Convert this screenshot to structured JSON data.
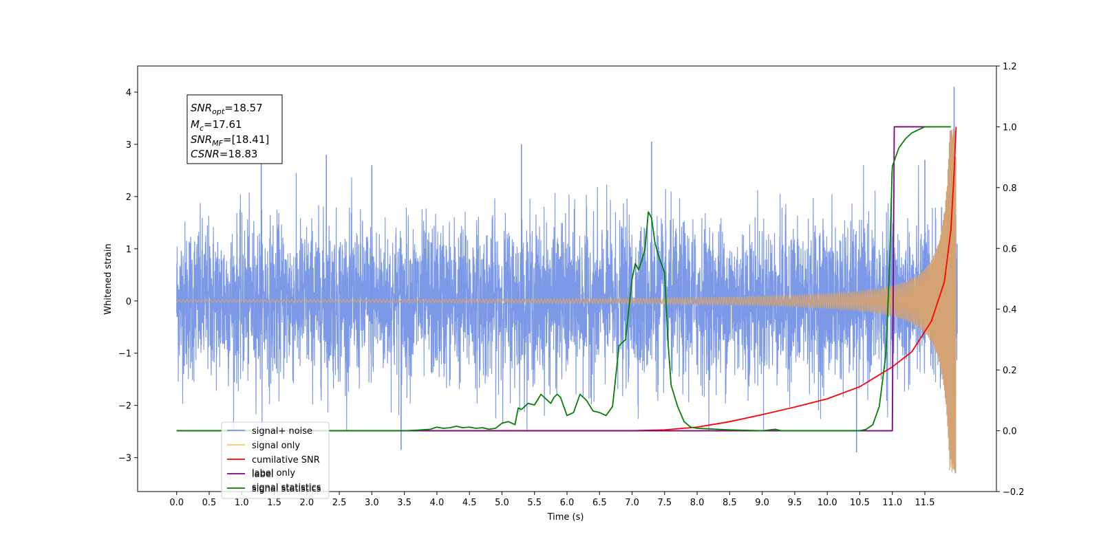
{
  "chart_data": {
    "type": "line",
    "xlabel": "Time (s)",
    "ylabel": "Whitened strain",
    "xlim": [
      -0.6,
      12.6
    ],
    "ylim": [
      -3.65,
      4.5
    ],
    "y2lim": [
      -0.2,
      1.2
    ],
    "x_ticks": [
      "0.0",
      "0.5",
      "1.0",
      "1.5",
      "2.0",
      "2.5",
      "3.0",
      "3.5",
      "4.0",
      "4.5",
      "5.0",
      "5.5",
      "6.0",
      "6.5",
      "7.0",
      "7.5",
      "8.0",
      "8.5",
      "9.0",
      "9.5",
      "10.0",
      "10.5",
      "11.0",
      "11.5"
    ],
    "y_ticks": [
      "−3",
      "−2",
      "−1",
      "0",
      "1",
      "2",
      "3",
      "4"
    ],
    "y2_ticks": [
      "−0.2",
      "0.0",
      "0.2",
      "0.4",
      "0.6",
      "0.8",
      "1.0",
      "1.2"
    ],
    "legend_position": "lower-left",
    "legend": [
      {
        "label": "signal+ noise",
        "color": "#7593e6"
      },
      {
        "label": "signal only",
        "color": "#ffc266"
      },
      {
        "label": "cumilative SNR",
        "color": "#ff0000"
      },
      {
        "label": "label",
        "color": "#800080"
      },
      {
        "label": "signal statistics",
        "color": "#008000"
      }
    ],
    "hidden_legend_text": [
      "label only",
      "signal statistics"
    ],
    "info_box": {
      "snr_opt_name": "SNR",
      "snr_opt_sub": "opt",
      "snr_opt_value": "=18.57",
      "mc_name": "M",
      "mc_sub": "c",
      "mc_value": "=17.61",
      "snr_mf_name": "SNR",
      "snr_mf_sub": "MF",
      "snr_mf_value": "=[18.41]",
      "csnr_name": "CSNR",
      "csnr_value": "=18.83"
    },
    "series": [
      {
        "name": "signal+ noise",
        "axis": "left",
        "description_points": "noise band with std ~0.75, x from 0 to 12.0",
        "x_range": [
          0,
          12.0
        ],
        "noise_std": 0.75,
        "notable_spikes": [
          [
            1.3,
            2.7
          ],
          [
            2.3,
            2.8
          ],
          [
            3.0,
            2.6
          ],
          [
            3.45,
            -2.85
          ],
          [
            5.3,
            3.0
          ],
          [
            7.3,
            3.05
          ],
          [
            10.45,
            -2.9
          ],
          [
            11.5,
            2.7
          ],
          [
            11.95,
            4.1
          ],
          [
            11.97,
            -3.3
          ]
        ],
        "color": "#7593e6"
      },
      {
        "name": "signal only",
        "axis": "left",
        "chirp": {
          "t_start": 0.0,
          "t_merge": 11.98,
          "amp_final": 3.3,
          "color": "#d4a373"
        }
      },
      {
        "name": "cumilative SNR",
        "axis": "right",
        "color": "#ff0000",
        "x": [
          0.0,
          7.0,
          7.5,
          8.0,
          8.5,
          9.0,
          9.5,
          10.0,
          10.5,
          11.0,
          11.3,
          11.6,
          11.8,
          11.9,
          11.95,
          11.98
        ],
        "y": [
          0.0,
          0.0,
          0.003,
          0.012,
          0.03,
          0.053,
          0.078,
          0.105,
          0.145,
          0.21,
          0.26,
          0.36,
          0.49,
          0.66,
          0.85,
          1.0
        ]
      },
      {
        "name": "label",
        "axis": "right",
        "color": "#800080",
        "x": [
          0.0,
          11.0,
          11.03,
          11.6
        ],
        "y": [
          0.0,
          0.0,
          1.0,
          1.0
        ]
      },
      {
        "name": "signal statistics",
        "axis": "right",
        "color": "#008000",
        "x": [
          0.0,
          3.5,
          3.7,
          3.9,
          4.0,
          4.1,
          4.2,
          4.3,
          4.4,
          4.5,
          4.6,
          4.7,
          4.8,
          4.9,
          5.0,
          5.1,
          5.2,
          5.25,
          5.3,
          5.4,
          5.5,
          5.6,
          5.7,
          5.75,
          5.8,
          5.85,
          5.9,
          6.0,
          6.1,
          6.2,
          6.3,
          6.4,
          6.5,
          6.6,
          6.7,
          6.8,
          6.9,
          7.0,
          7.05,
          7.1,
          7.15,
          7.2,
          7.25,
          7.3,
          7.35,
          7.4,
          7.5,
          7.55,
          7.6,
          7.7,
          7.8,
          7.9,
          8.0,
          8.5,
          9.0,
          9.2,
          9.3,
          10.5,
          10.6,
          10.7,
          10.8,
          10.9,
          10.95,
          11.0,
          11.1,
          11.2,
          11.3,
          11.4,
          11.5,
          11.6,
          11.7,
          11.8,
          11.9
        ],
        "y": [
          0.0,
          0.0,
          0.002,
          0.005,
          0.012,
          0.008,
          0.01,
          0.015,
          0.01,
          0.012,
          0.008,
          0.01,
          0.005,
          0.008,
          0.025,
          0.03,
          0.02,
          0.075,
          0.07,
          0.09,
          0.085,
          0.12,
          0.1,
          0.09,
          0.11,
          0.12,
          0.11,
          0.05,
          0.06,
          0.12,
          0.1,
          0.065,
          0.06,
          0.05,
          0.08,
          0.28,
          0.3,
          0.5,
          0.55,
          0.53,
          0.56,
          0.6,
          0.72,
          0.7,
          0.62,
          0.58,
          0.52,
          0.3,
          0.15,
          0.08,
          0.03,
          0.012,
          0.008,
          0.003,
          0.0,
          0.005,
          0.0,
          0.0,
          0.005,
          0.02,
          0.08,
          0.25,
          0.5,
          0.87,
          0.93,
          0.96,
          0.98,
          0.99,
          1.0,
          1.0,
          1.0,
          1.0,
          1.0
        ]
      }
    ]
  }
}
